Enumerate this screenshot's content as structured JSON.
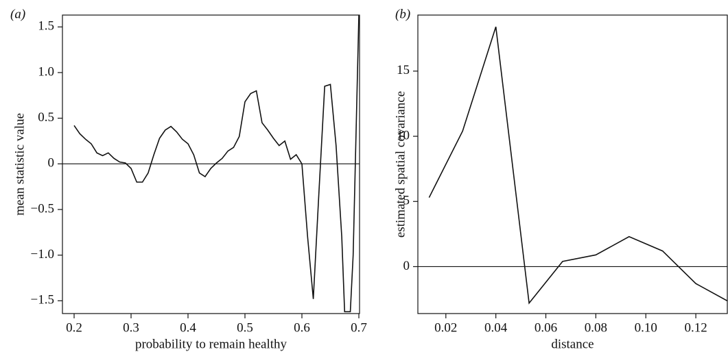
{
  "chart_data": [
    {
      "type": "line",
      "panel_label": "(a)",
      "x_label": "probability to remain healthy",
      "y_label": "mean statistic value",
      "x": [
        0.2,
        0.21,
        0.22,
        0.23,
        0.24,
        0.25,
        0.26,
        0.27,
        0.28,
        0.29,
        0.3,
        0.31,
        0.32,
        0.33,
        0.34,
        0.35,
        0.36,
        0.37,
        0.38,
        0.39,
        0.4,
        0.41,
        0.42,
        0.43,
        0.44,
        0.45,
        0.46,
        0.47,
        0.48,
        0.49,
        0.5,
        0.51,
        0.52,
        0.53,
        0.54,
        0.55,
        0.56,
        0.57,
        0.58,
        0.59,
        0.6,
        0.61,
        0.62,
        0.63,
        0.64,
        0.65,
        0.66,
        0.67,
        0.675,
        0.685,
        0.69,
        0.7
      ],
      "series": [
        {
          "color": "#111111",
          "values": [
            0.42,
            0.33,
            0.27,
            0.22,
            0.12,
            0.09,
            0.12,
            0.06,
            0.02,
            0.01,
            -0.05,
            -0.2,
            -0.2,
            -0.1,
            0.1,
            0.28,
            0.37,
            0.41,
            0.35,
            0.27,
            0.22,
            0.1,
            -0.1,
            -0.14,
            -0.05,
            0.01,
            0.06,
            0.14,
            0.18,
            0.3,
            0.68,
            0.77,
            0.8,
            0.45,
            0.37,
            0.28,
            0.2,
            0.25,
            0.05,
            0.1,
            0.0,
            -0.8,
            -1.48,
            -0.3,
            0.85,
            0.87,
            0.2,
            -0.8,
            -1.62,
            -1.62,
            -1.0,
            1.63
          ]
        }
      ],
      "reference_line": 0,
      "xlim": [
        0.1795,
        0.7012
      ],
      "xticks": [
        0.2,
        0.3,
        0.4,
        0.5,
        0.6,
        0.7
      ],
      "ylim": [
        -1.64,
        1.63
      ],
      "yticks": [
        {
          "value": -1.5,
          "label": "−1.5"
        },
        {
          "value": -1.0,
          "label": "−1.0"
        },
        {
          "value": -0.5,
          "label": "−0.5"
        },
        0,
        0.5,
        {
          "value": 1.0,
          "label": "1.0"
        },
        1.5
      ]
    },
    {
      "type": "line",
      "panel_label": "(b)",
      "x_label": "distance",
      "y_label": "estimated spatial covariance",
      "x": [
        0.0133,
        0.0267,
        0.04,
        0.0533,
        0.0667,
        0.08,
        0.0933,
        0.1067,
        0.12,
        0.1333
      ],
      "series": [
        {
          "color": "#111111",
          "values": [
            5.3,
            10.4,
            18.4,
            -2.8,
            0.4,
            0.9,
            2.3,
            1.2,
            -1.3,
            -2.7
          ]
        }
      ],
      "reference_line": 0,
      "xlim": [
        0.0088,
        0.1326
      ],
      "xticks": [
        0.02,
        0.04,
        0.06,
        0.08,
        {
          "value": 0.1,
          "label": "0.10"
        },
        0.12
      ],
      "ylim": [
        -3.6,
        19.3
      ],
      "yticks": [
        0,
        5,
        10,
        15
      ]
    }
  ]
}
